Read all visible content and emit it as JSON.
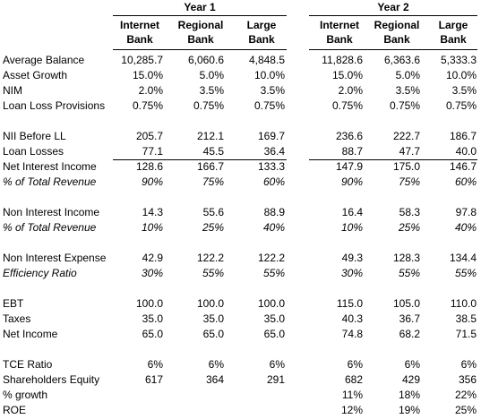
{
  "groups": [
    {
      "title": "Year 1",
      "columns": [
        [
          "Internet",
          "Bank"
        ],
        [
          "Regional",
          "Bank"
        ],
        [
          "Large",
          "Bank"
        ]
      ]
    },
    {
      "title": "Year 2",
      "columns": [
        [
          "Internet",
          "Bank"
        ],
        [
          "Regional",
          "Bank"
        ],
        [
          "Large",
          "Bank"
        ]
      ]
    }
  ],
  "sections": [
    [
      {
        "label": "Average Balance",
        "values": [
          "10,285.7",
          "6,060.6",
          "4,848.5",
          "11,828.6",
          "6,363.6",
          "5,333.3"
        ]
      },
      {
        "label": "Asset Growth",
        "color": "#0000cc",
        "values": [
          "15.0%",
          "5.0%",
          "10.0%",
          "15.0%",
          "5.0%",
          "10.0%"
        ]
      },
      {
        "label": "NIM",
        "color": "#0000cc",
        "values": [
          "2.0%",
          "3.5%",
          "3.5%",
          "2.0%",
          "3.5%",
          "3.5%"
        ]
      },
      {
        "label": "Loan Loss Provisions",
        "color": "#0000cc",
        "values": [
          "0.75%",
          "0.75%",
          "0.75%",
          "0.75%",
          "0.75%",
          "0.75%"
        ]
      }
    ],
    [
      {
        "label": "NII Before LL",
        "values": [
          "205.7",
          "212.1",
          "169.7",
          "236.6",
          "222.7",
          "186.7"
        ]
      },
      {
        "label": "Loan Losses",
        "values": [
          "77.1",
          "45.5",
          "36.4",
          "88.7",
          "47.7",
          "40.0"
        ]
      },
      {
        "label": "Net Interest Income",
        "rule_above": true,
        "values": [
          "128.6",
          "166.7",
          "133.3",
          "147.9",
          "175.0",
          "146.7"
        ]
      },
      {
        "label": "% of Total Revenue",
        "italic": true,
        "color": "#0000cc",
        "values": [
          "90%",
          "75%",
          "60%",
          "90%",
          "75%",
          "60%"
        ]
      }
    ],
    [
      {
        "label": "Non Interest Income",
        "values": [
          "14.3",
          "55.6",
          "88.9",
          "16.4",
          "58.3",
          "97.8"
        ]
      },
      {
        "label": "% of Total Revenue",
        "italic": true,
        "color": "#0000cc",
        "values": [
          "10%",
          "25%",
          "40%",
          "10%",
          "25%",
          "40%"
        ]
      }
    ],
    [
      {
        "label": "Non Interest Expense",
        "values": [
          "42.9",
          "122.2",
          "122.2",
          "49.3",
          "128.3",
          "134.4"
        ]
      },
      {
        "label": "Efficiency Ratio",
        "italic": true,
        "color": "#0000cc",
        "values": [
          "30%",
          "55%",
          "55%",
          "30%",
          "55%",
          "55%"
        ]
      }
    ],
    [
      {
        "label": "EBT",
        "values": [
          "100.0",
          "100.0",
          "100.0",
          "115.0",
          "105.0",
          "110.0"
        ]
      },
      {
        "label": "Taxes",
        "values": [
          "35.0",
          "35.0",
          "35.0",
          "40.3",
          "36.7",
          "38.5"
        ]
      },
      {
        "label": "Net Income",
        "values": [
          "65.0",
          "65.0",
          "65.0",
          "74.8",
          "68.2",
          "71.5"
        ]
      }
    ],
    [
      {
        "label": "TCE Ratio",
        "values": [
          "6%",
          "6%",
          "6%",
          "6%",
          "6%",
          "6%"
        ]
      },
      {
        "label": "Shareholders Equity",
        "values": [
          "617",
          "364",
          "291",
          "682",
          "429",
          "356"
        ]
      },
      {
        "label": "% growth",
        "values": [
          null,
          null,
          null,
          "11%",
          "18%",
          "22%"
        ]
      },
      {
        "label": "ROE",
        "values": [
          null,
          null,
          null,
          "12%",
          "19%",
          "25%"
        ]
      }
    ]
  ]
}
